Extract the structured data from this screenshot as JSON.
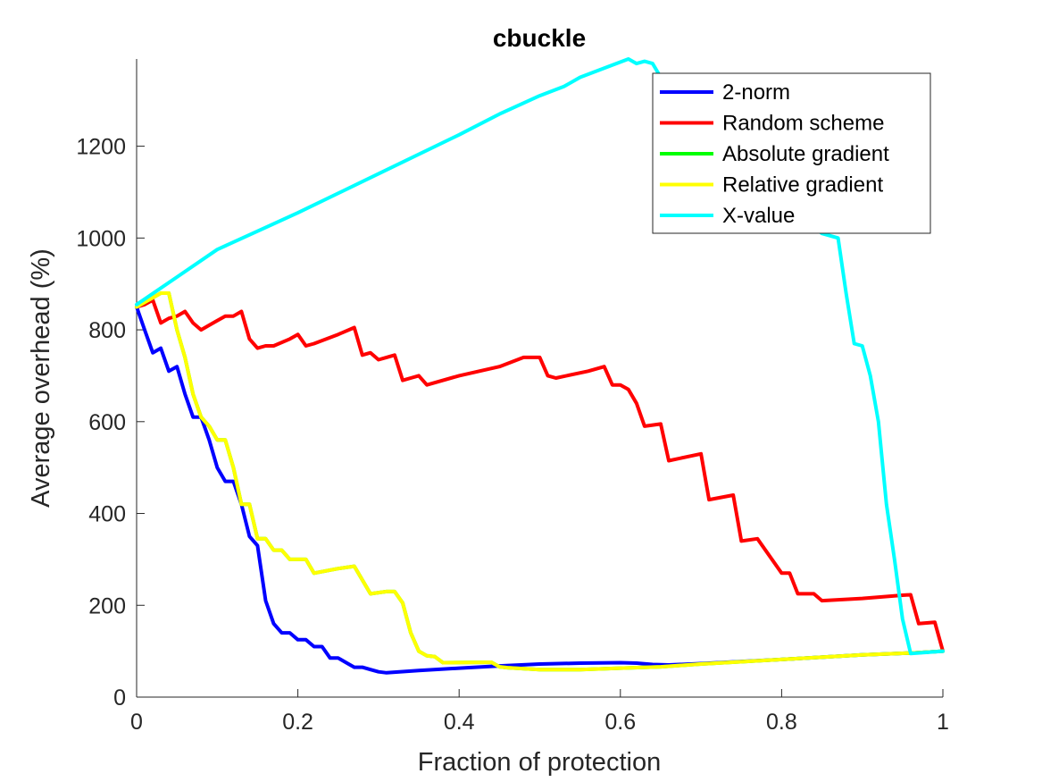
{
  "chart_data": {
    "type": "line",
    "title": "cbuckle",
    "xlabel": "Fraction of protection",
    "ylabel": "Average overhead (%)",
    "xlim": [
      0,
      1
    ],
    "ylim": [
      0,
      1390
    ],
    "xticks": [
      0,
      0.2,
      0.4,
      0.6,
      0.8,
      1
    ],
    "xtick_labels": [
      "0",
      "0.2",
      "0.4",
      "0.6",
      "0.8",
      "1"
    ],
    "yticks": [
      0,
      200,
      400,
      600,
      800,
      1000,
      1200
    ],
    "ytick_labels": [
      "0",
      "200",
      "400",
      "600",
      "800",
      "1000",
      "1200"
    ],
    "grid": false,
    "legend_position": "top-right",
    "series": [
      {
        "name": "2-norm",
        "color": "#0000ff",
        "points": [
          [
            0,
            850
          ],
          [
            0.01,
            800
          ],
          [
            0.02,
            750
          ],
          [
            0.03,
            760
          ],
          [
            0.04,
            710
          ],
          [
            0.05,
            720
          ],
          [
            0.06,
            660
          ],
          [
            0.07,
            610
          ],
          [
            0.08,
            610
          ],
          [
            0.09,
            560
          ],
          [
            0.1,
            500
          ],
          [
            0.11,
            470
          ],
          [
            0.12,
            470
          ],
          [
            0.13,
            420
          ],
          [
            0.14,
            350
          ],
          [
            0.15,
            330
          ],
          [
            0.16,
            210
          ],
          [
            0.17,
            160
          ],
          [
            0.18,
            140
          ],
          [
            0.19,
            140
          ],
          [
            0.2,
            125
          ],
          [
            0.21,
            125
          ],
          [
            0.22,
            110
          ],
          [
            0.23,
            110
          ],
          [
            0.24,
            85
          ],
          [
            0.25,
            85
          ],
          [
            0.26,
            75
          ],
          [
            0.27,
            65
          ],
          [
            0.28,
            65
          ],
          [
            0.29,
            60
          ],
          [
            0.3,
            55
          ],
          [
            0.31,
            53
          ],
          [
            0.35,
            58
          ],
          [
            0.4,
            63
          ],
          [
            0.45,
            68
          ],
          [
            0.5,
            72
          ],
          [
            0.55,
            74
          ],
          [
            0.6,
            75
          ],
          [
            0.62,
            74
          ],
          [
            0.64,
            71
          ],
          [
            0.66,
            70
          ],
          [
            0.7,
            73
          ],
          [
            0.8,
            82
          ],
          [
            0.9,
            92
          ],
          [
            0.96,
            96
          ],
          [
            1,
            100
          ]
        ]
      },
      {
        "name": "Random scheme",
        "color": "#ff0000",
        "points": [
          [
            0,
            850
          ],
          [
            0.01,
            855
          ],
          [
            0.02,
            865
          ],
          [
            0.03,
            815
          ],
          [
            0.04,
            825
          ],
          [
            0.05,
            830
          ],
          [
            0.06,
            840
          ],
          [
            0.07,
            815
          ],
          [
            0.08,
            800
          ],
          [
            0.09,
            810
          ],
          [
            0.1,
            820
          ],
          [
            0.11,
            830
          ],
          [
            0.12,
            830
          ],
          [
            0.13,
            840
          ],
          [
            0.14,
            780
          ],
          [
            0.15,
            760
          ],
          [
            0.16,
            765
          ],
          [
            0.17,
            765
          ],
          [
            0.19,
            780
          ],
          [
            0.2,
            790
          ],
          [
            0.21,
            765
          ],
          [
            0.22,
            770
          ],
          [
            0.25,
            790
          ],
          [
            0.27,
            805
          ],
          [
            0.28,
            745
          ],
          [
            0.29,
            750
          ],
          [
            0.3,
            735
          ],
          [
            0.31,
            740
          ],
          [
            0.32,
            745
          ],
          [
            0.33,
            690
          ],
          [
            0.34,
            695
          ],
          [
            0.35,
            700
          ],
          [
            0.36,
            680
          ],
          [
            0.4,
            700
          ],
          [
            0.45,
            720
          ],
          [
            0.48,
            740
          ],
          [
            0.5,
            740
          ],
          [
            0.51,
            700
          ],
          [
            0.52,
            695
          ],
          [
            0.56,
            710
          ],
          [
            0.58,
            720
          ],
          [
            0.59,
            680
          ],
          [
            0.6,
            680
          ],
          [
            0.61,
            670
          ],
          [
            0.62,
            640
          ],
          [
            0.63,
            590
          ],
          [
            0.65,
            595
          ],
          [
            0.66,
            515
          ],
          [
            0.7,
            530
          ],
          [
            0.71,
            430
          ],
          [
            0.74,
            440
          ],
          [
            0.75,
            340
          ],
          [
            0.77,
            345
          ],
          [
            0.8,
            270
          ],
          [
            0.81,
            270
          ],
          [
            0.82,
            225
          ],
          [
            0.84,
            225
          ],
          [
            0.85,
            210
          ],
          [
            0.9,
            215
          ],
          [
            0.95,
            222
          ],
          [
            0.96,
            223
          ],
          [
            0.97,
            160
          ],
          [
            0.99,
            163
          ],
          [
            1,
            100
          ]
        ]
      },
      {
        "name": "Absolute gradient",
        "color": "#00ff00",
        "points": [
          [
            0,
            850
          ],
          [
            0.02,
            870
          ],
          [
            0.03,
            880
          ],
          [
            0.04,
            880
          ],
          [
            0.05,
            800
          ],
          [
            0.06,
            740
          ],
          [
            0.07,
            660
          ],
          [
            0.08,
            610
          ],
          [
            0.09,
            590
          ],
          [
            0.1,
            560
          ],
          [
            0.11,
            560
          ],
          [
            0.12,
            500
          ],
          [
            0.13,
            420
          ],
          [
            0.14,
            420
          ],
          [
            0.15,
            345
          ],
          [
            0.16,
            345
          ],
          [
            0.17,
            320
          ],
          [
            0.18,
            320
          ],
          [
            0.19,
            300
          ],
          [
            0.21,
            300
          ],
          [
            0.22,
            270
          ],
          [
            0.25,
            280
          ],
          [
            0.27,
            285
          ],
          [
            0.29,
            225
          ],
          [
            0.31,
            230
          ],
          [
            0.32,
            230
          ],
          [
            0.33,
            205
          ],
          [
            0.34,
            140
          ],
          [
            0.35,
            100
          ],
          [
            0.36,
            90
          ],
          [
            0.37,
            88
          ],
          [
            0.38,
            75
          ],
          [
            0.44,
            76
          ],
          [
            0.45,
            66
          ],
          [
            0.46,
            64
          ],
          [
            0.5,
            60
          ],
          [
            0.55,
            60
          ],
          [
            0.6,
            63
          ],
          [
            0.65,
            66
          ],
          [
            0.7,
            72
          ],
          [
            0.8,
            82
          ],
          [
            0.9,
            92
          ],
          [
            0.96,
            96
          ],
          [
            1,
            100
          ]
        ]
      },
      {
        "name": "Relative gradient",
        "color": "#ffff00",
        "points": [
          [
            0,
            850
          ],
          [
            0.02,
            870
          ],
          [
            0.03,
            880
          ],
          [
            0.04,
            880
          ],
          [
            0.05,
            800
          ],
          [
            0.06,
            740
          ],
          [
            0.07,
            660
          ],
          [
            0.08,
            610
          ],
          [
            0.09,
            590
          ],
          [
            0.1,
            560
          ],
          [
            0.11,
            560
          ],
          [
            0.12,
            500
          ],
          [
            0.13,
            420
          ],
          [
            0.14,
            420
          ],
          [
            0.15,
            345
          ],
          [
            0.16,
            345
          ],
          [
            0.17,
            320
          ],
          [
            0.18,
            320
          ],
          [
            0.19,
            300
          ],
          [
            0.21,
            300
          ],
          [
            0.22,
            270
          ],
          [
            0.25,
            280
          ],
          [
            0.27,
            285
          ],
          [
            0.29,
            225
          ],
          [
            0.31,
            230
          ],
          [
            0.32,
            230
          ],
          [
            0.33,
            205
          ],
          [
            0.34,
            140
          ],
          [
            0.35,
            100
          ],
          [
            0.36,
            90
          ],
          [
            0.37,
            88
          ],
          [
            0.38,
            75
          ],
          [
            0.44,
            76
          ],
          [
            0.45,
            66
          ],
          [
            0.46,
            64
          ],
          [
            0.5,
            60
          ],
          [
            0.55,
            60
          ],
          [
            0.6,
            63
          ],
          [
            0.65,
            66
          ],
          [
            0.7,
            72
          ],
          [
            0.8,
            82
          ],
          [
            0.9,
            92
          ],
          [
            0.96,
            96
          ],
          [
            1,
            100
          ]
        ]
      },
      {
        "name": "X-value",
        "color": "#00ffff",
        "points": [
          [
            0,
            855
          ],
          [
            0.05,
            915
          ],
          [
            0.1,
            975
          ],
          [
            0.2,
            1055
          ],
          [
            0.3,
            1140
          ],
          [
            0.4,
            1225
          ],
          [
            0.45,
            1270
          ],
          [
            0.5,
            1310
          ],
          [
            0.53,
            1330
          ],
          [
            0.55,
            1350
          ],
          [
            0.58,
            1370
          ],
          [
            0.61,
            1390
          ],
          [
            0.62,
            1380
          ],
          [
            0.63,
            1385
          ],
          [
            0.64,
            1380
          ],
          [
            0.65,
            1350
          ],
          [
            0.7,
            1250
          ],
          [
            0.75,
            1150
          ],
          [
            0.8,
            1080
          ],
          [
            0.85,
            1010
          ],
          [
            0.87,
            1000
          ],
          [
            0.88,
            880
          ],
          [
            0.89,
            770
          ],
          [
            0.9,
            765
          ],
          [
            0.91,
            700
          ],
          [
            0.92,
            600
          ],
          [
            0.93,
            420
          ],
          [
            0.94,
            300
          ],
          [
            0.95,
            170
          ],
          [
            0.96,
            95
          ],
          [
            1,
            100
          ]
        ]
      }
    ]
  }
}
